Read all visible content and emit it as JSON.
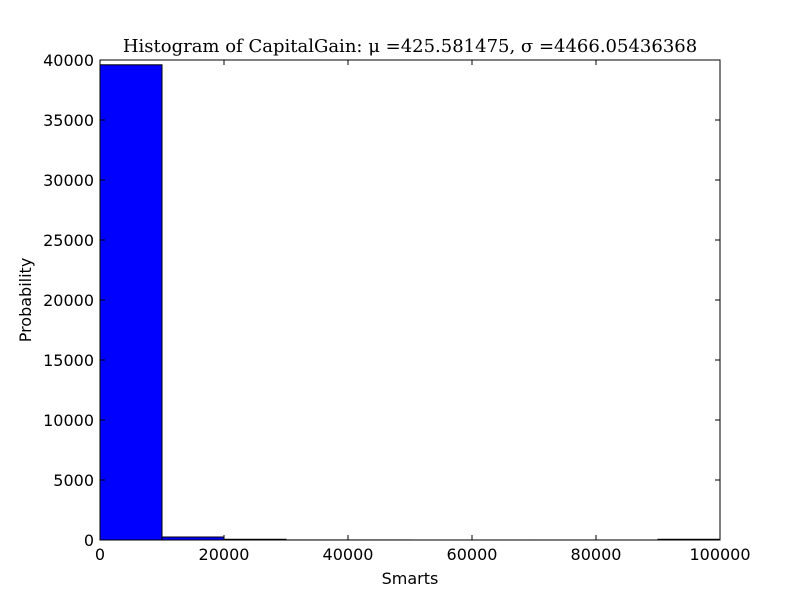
{
  "chart_data": {
    "type": "bar",
    "title": "Histogram of CapitalGain: μ =425.581475, σ =4466.05436368",
    "xlabel": "Smarts",
    "ylabel": "Probability",
    "xlim": [
      0,
      100000
    ],
    "ylim": [
      0,
      40000
    ],
    "xticks": [
      "0",
      "20000",
      "40000",
      "60000",
      "80000",
      "100000"
    ],
    "yticks": [
      "0",
      "5000",
      "10000",
      "15000",
      "20000",
      "25000",
      "30000",
      "35000",
      "40000"
    ],
    "bins": [
      {
        "x0": 0,
        "x1": 10000,
        "value": 39600
      },
      {
        "x0": 10000,
        "x1": 20000,
        "value": 250
      },
      {
        "x0": 20000,
        "x1": 30000,
        "value": 60
      },
      {
        "x0": 30000,
        "x1": 40000,
        "value": 5
      },
      {
        "x0": 40000,
        "x1": 50000,
        "value": 5
      },
      {
        "x0": 50000,
        "x1": 60000,
        "value": 2
      },
      {
        "x0": 60000,
        "x1": 70000,
        "value": 2
      },
      {
        "x0": 70000,
        "x1": 80000,
        "value": 2
      },
      {
        "x0": 80000,
        "x1": 90000,
        "value": 2
      },
      {
        "x0": 90000,
        "x1": 100000,
        "value": 60
      }
    ],
    "bar_color": "#0000ff",
    "edge_color": "#000000",
    "grid": false
  }
}
